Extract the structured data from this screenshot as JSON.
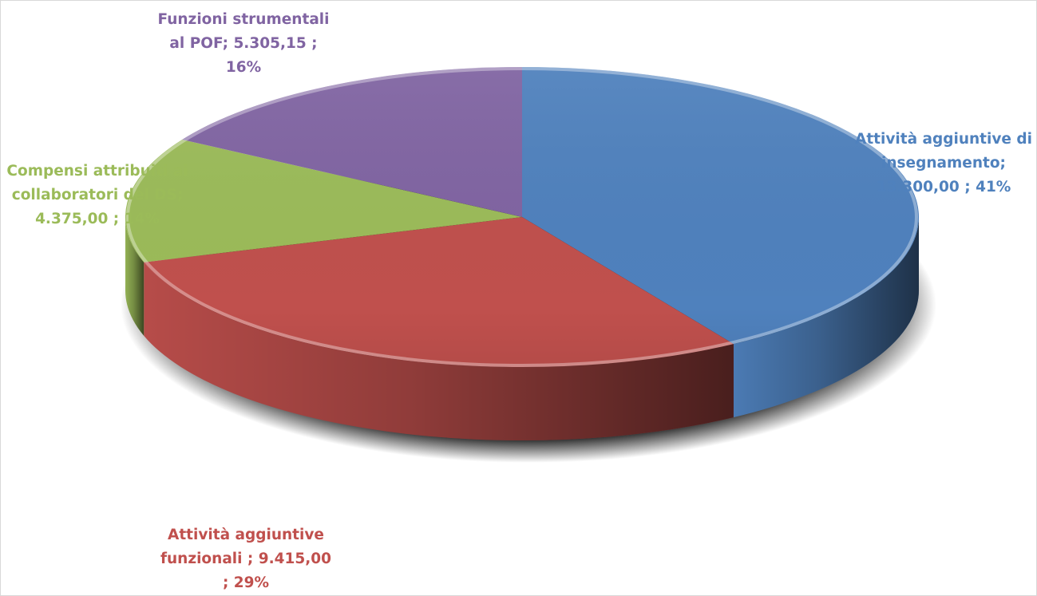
{
  "chart_data": {
    "type": "pie",
    "variant": "3d",
    "title": "",
    "legend": "none",
    "slices": [
      {
        "label": "Attività aggiuntive di insegnamento",
        "value": 13300.0,
        "percent": 41,
        "value_text": "13.300,00",
        "color": "#4F81BD",
        "label_lines": [
          "Attività aggiuntive di",
          "insegnamento;",
          "13.300,00 ; 41%"
        ]
      },
      {
        "label": "Attività aggiuntive funzionali",
        "value": 9415.0,
        "percent": 29,
        "value_text": "9.415,00",
        "color": "#C0504D",
        "label_lines": [
          "Attività aggiuntive",
          "funzionali ;  9.415,00",
          "; 29%"
        ]
      },
      {
        "label": "Compensi attribuiti ai collaboratori del DS",
        "value": 4375.0,
        "percent": 14,
        "value_text": "4.375,00",
        "color": "#9BBB59",
        "label_lines": [
          "Compensi attribuiti ai",
          "collaboratori del DS;",
          "4.375,00 ; 14%"
        ]
      },
      {
        "label": "Funzioni strumentali al POF",
        "value": 5305.15,
        "percent": 16,
        "value_text": "5.305,15",
        "color": "#8064A2",
        "label_lines": [
          "Funzioni strumentali",
          "al POF;  5.305,15 ;",
          "16%"
        ]
      }
    ]
  }
}
